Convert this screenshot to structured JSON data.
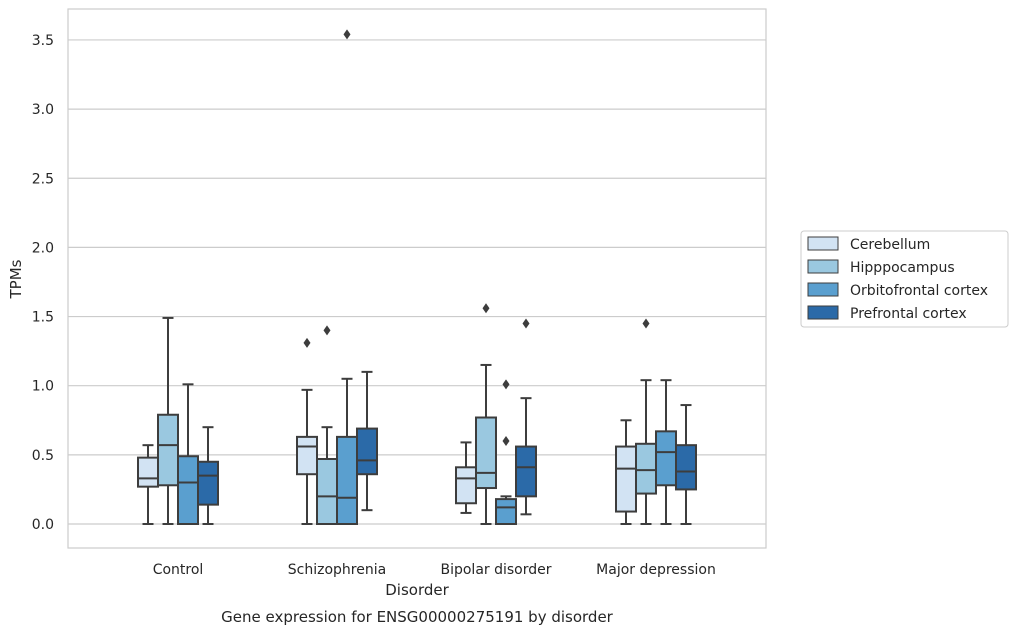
{
  "chart_data": {
    "type": "box",
    "title": "",
    "caption": "Gene expression for ENSG00000275191 by disorder",
    "xlabel": "Disorder",
    "ylabel": "TPMs",
    "ylim": [
      -0.17,
      3.72
    ],
    "yticks": [
      0.0,
      0.5,
      1.0,
      1.5,
      2.0,
      2.5,
      3.0,
      3.5
    ],
    "ytick_labels": [
      "0.0",
      "0.5",
      "1.0",
      "1.5",
      "2.0",
      "2.5",
      "3.0",
      "3.5"
    ],
    "grid": "horizontal",
    "legend_position": "right",
    "categories": [
      "Control",
      "Schizophrenia",
      "Bipolar disorder",
      "Major depression"
    ],
    "series": [
      {
        "name": "Cerebellum",
        "color": "#d2e3f3",
        "boxes": [
          {
            "whisker_low": 0.0,
            "q1": 0.27,
            "median": 0.33,
            "q3": 0.48,
            "whisker_high": 0.57,
            "outliers": []
          },
          {
            "whisker_low": 0.0,
            "q1": 0.36,
            "median": 0.56,
            "q3": 0.63,
            "whisker_high": 0.97,
            "outliers": [
              1.31
            ]
          },
          {
            "whisker_low": 0.08,
            "q1": 0.15,
            "median": 0.33,
            "q3": 0.41,
            "whisker_high": 0.59,
            "outliers": []
          },
          {
            "whisker_low": 0.0,
            "q1": 0.09,
            "median": 0.4,
            "q3": 0.56,
            "whisker_high": 0.75,
            "outliers": []
          }
        ]
      },
      {
        "name": "Hipppocampus",
        "color": "#9ac8e0",
        "boxes": [
          {
            "whisker_low": 0.0,
            "q1": 0.28,
            "median": 0.57,
            "q3": 0.79,
            "whisker_high": 1.49,
            "outliers": []
          },
          {
            "whisker_low": 0.0,
            "q1": 0.0,
            "median": 0.2,
            "q3": 0.47,
            "whisker_high": 0.7,
            "outliers": [
              1.4
            ]
          },
          {
            "whisker_low": 0.0,
            "q1": 0.26,
            "median": 0.37,
            "q3": 0.77,
            "whisker_high": 1.15,
            "outliers": [
              1.56
            ]
          },
          {
            "whisker_low": 0.0,
            "q1": 0.22,
            "median": 0.39,
            "q3": 0.58,
            "whisker_high": 1.04,
            "outliers": [
              1.45
            ]
          }
        ]
      },
      {
        "name": "Orbitofrontal cortex",
        "color": "#5a9fcf",
        "boxes": [
          {
            "whisker_low": 0.0,
            "q1": 0.0,
            "median": 0.3,
            "q3": 0.49,
            "whisker_high": 1.01,
            "outliers": []
          },
          {
            "whisker_low": 0.0,
            "q1": 0.0,
            "median": 0.19,
            "q3": 0.63,
            "whisker_high": 1.05,
            "outliers": [
              3.54
            ]
          },
          {
            "whisker_low": 0.0,
            "q1": 0.0,
            "median": 0.12,
            "q3": 0.18,
            "whisker_high": 0.2,
            "outliers": [
              1.01,
              0.6
            ]
          },
          {
            "whisker_low": 0.0,
            "q1": 0.28,
            "median": 0.52,
            "q3": 0.67,
            "whisker_high": 1.04,
            "outliers": []
          }
        ]
      },
      {
        "name": "Prefrontal cortex",
        "color": "#2b6aa8",
        "boxes": [
          {
            "whisker_low": 0.0,
            "q1": 0.14,
            "median": 0.35,
            "q3": 0.45,
            "whisker_high": 0.7,
            "outliers": []
          },
          {
            "whisker_low": 0.1,
            "q1": 0.36,
            "median": 0.46,
            "q3": 0.69,
            "whisker_high": 1.1,
            "outliers": []
          },
          {
            "whisker_low": 0.07,
            "q1": 0.2,
            "median": 0.41,
            "q3": 0.56,
            "whisker_high": 0.91,
            "outliers": [
              1.45
            ]
          },
          {
            "whisker_low": 0.0,
            "q1": 0.25,
            "median": 0.38,
            "q3": 0.57,
            "whisker_high": 0.86,
            "outliers": []
          }
        ]
      }
    ]
  }
}
